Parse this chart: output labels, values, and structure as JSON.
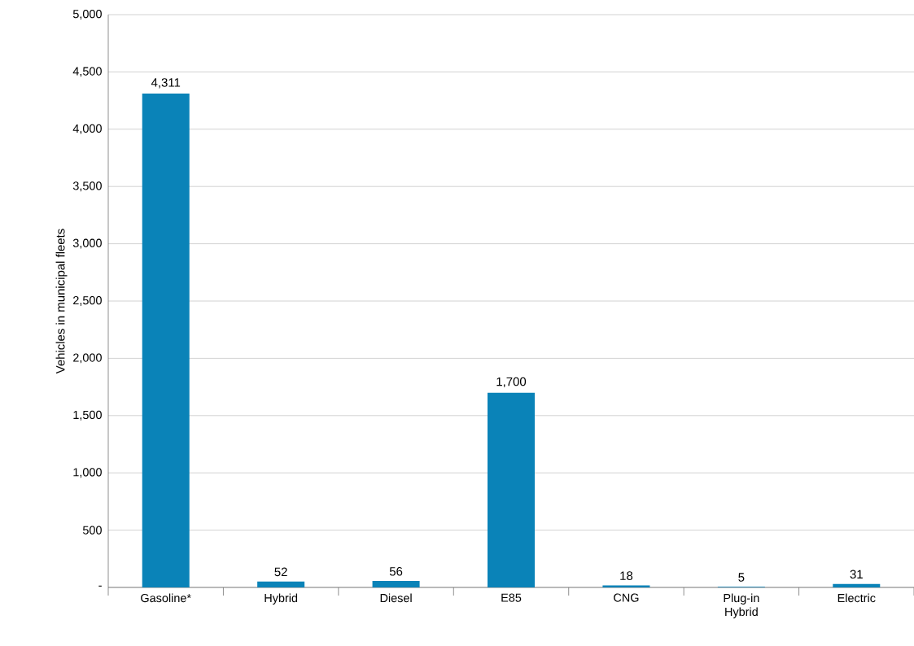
{
  "chart_data": {
    "type": "bar",
    "ylabel": "Vehicles in municipal fleets",
    "categories": [
      "Gasoline*",
      "Hybrid",
      "Diesel",
      "E85",
      "CNG",
      "Plug-in Hybrid",
      "Electric"
    ],
    "values": [
      4311,
      52,
      56,
      1700,
      18,
      5,
      31
    ],
    "value_labels": [
      "4,311",
      "52",
      "56",
      "1,700",
      "18",
      "5",
      "31"
    ],
    "color": "#0a83b8",
    "ylim": [
      0,
      5000
    ],
    "yticks": [
      {
        "value": 0,
        "label": "-"
      },
      {
        "value": 500,
        "label": "500"
      },
      {
        "value": 1000,
        "label": "1,000"
      },
      {
        "value": 1500,
        "label": "1,500"
      },
      {
        "value": 2000,
        "label": "2,000"
      },
      {
        "value": 2500,
        "label": "2,500"
      },
      {
        "value": 3000,
        "label": "3,000"
      },
      {
        "value": 3500,
        "label": "3,500"
      },
      {
        "value": 4000,
        "label": "4,000"
      },
      {
        "value": 4500,
        "label": "4,500"
      },
      {
        "value": 5000,
        "label": "5,000"
      }
    ],
    "grid": "y"
  }
}
